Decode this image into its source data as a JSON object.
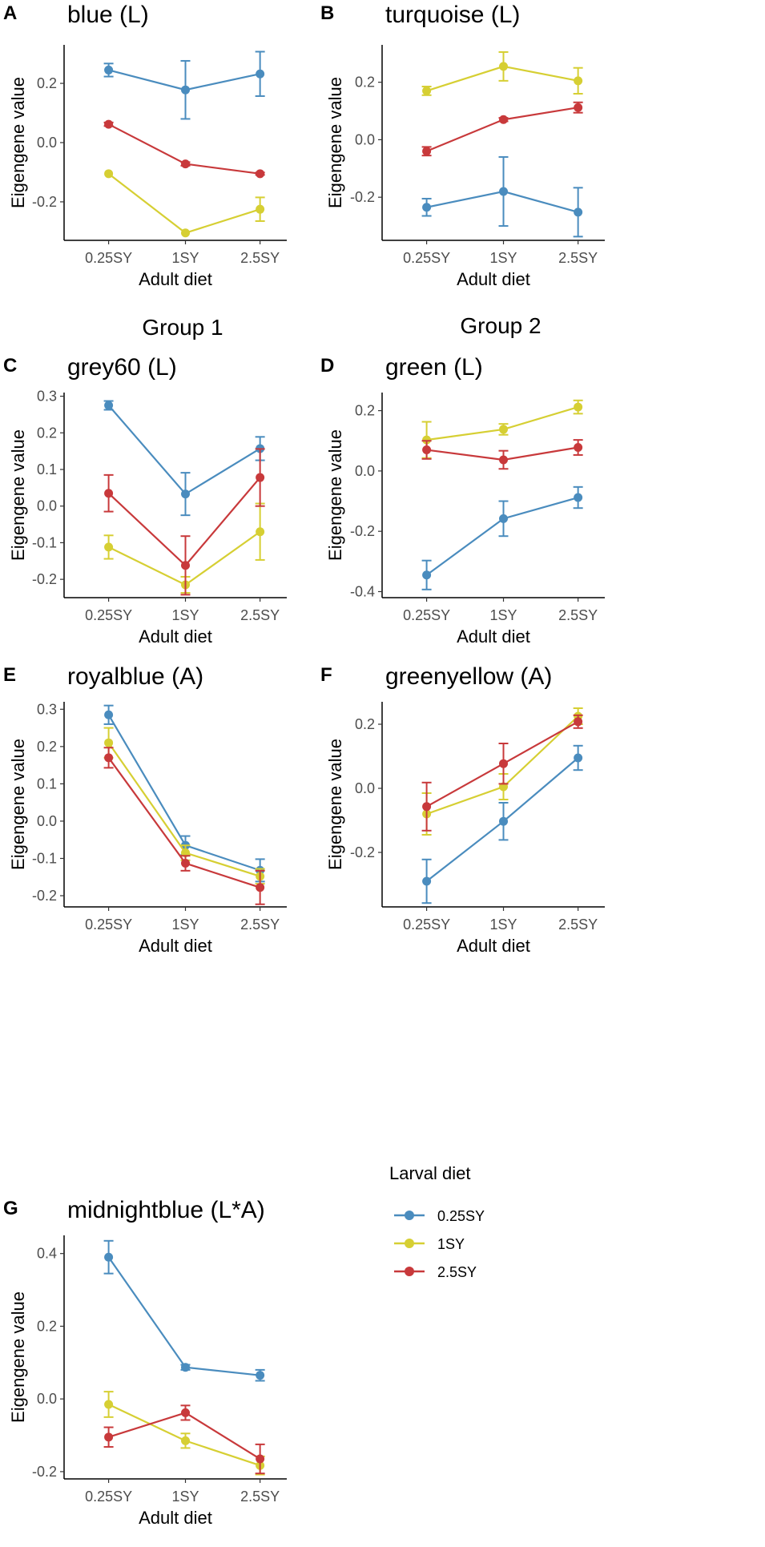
{
  "figure": {
    "group_labels": [
      "Group 1",
      "Group 2"
    ],
    "legend": {
      "title": "Larval diet",
      "items": [
        {
          "label": "0.25SY",
          "color": "#4a8cbe"
        },
        {
          "label": "1SY",
          "color": "#d6cf33"
        },
        {
          "label": "2.5SY",
          "color": "#c8393b"
        }
      ]
    }
  },
  "chart_data": [
    {
      "panel": "A",
      "title": "blue (L)",
      "type": "line",
      "categories": [
        "0.25SY",
        "1SY",
        "2.5SY"
      ],
      "xlabel": "Adult diet",
      "ylabel": "Eigengene value",
      "ylim": [
        -0.33,
        0.33
      ],
      "yticks": [
        0.2,
        0.0,
        -0.2
      ],
      "ytick_labels": [
        "0.2",
        "0.0",
        "-0.2"
      ],
      "series": [
        {
          "name": "0.25SY",
          "color": "#4a8cbe",
          "values": [
            0.245,
            0.178,
            0.232
          ],
          "errors": [
            0.022,
            0.098,
            0.075
          ]
        },
        {
          "name": "1SY",
          "color": "#d6cf33",
          "values": [
            -0.105,
            -0.305,
            -0.225
          ],
          "errors": [
            0.0,
            0.0,
            0.04
          ]
        },
        {
          "name": "2.5SY",
          "color": "#c8393b",
          "values": [
            0.062,
            -0.072,
            -0.105
          ],
          "errors": [
            0.006,
            0.006,
            0.004
          ]
        }
      ]
    },
    {
      "panel": "B",
      "title": "turquoise (L)",
      "type": "line",
      "categories": [
        "0.25SY",
        "1SY",
        "2.5SY"
      ],
      "xlabel": "Adult diet",
      "ylabel": "Eigengene value",
      "ylim": [
        -0.35,
        0.33
      ],
      "yticks": [
        0.2,
        0.0,
        -0.2
      ],
      "ytick_labels": [
        "0.2",
        "0.0",
        "-0.2"
      ],
      "series": [
        {
          "name": "0.25SY",
          "color": "#4a8cbe",
          "values": [
            -0.235,
            -0.18,
            -0.252
          ],
          "errors": [
            0.03,
            0.12,
            0.085
          ]
        },
        {
          "name": "1SY",
          "color": "#d6cf33",
          "values": [
            0.17,
            0.255,
            0.205
          ],
          "errors": [
            0.015,
            0.05,
            0.045
          ]
        },
        {
          "name": "2.5SY",
          "color": "#c8393b",
          "values": [
            -0.04,
            0.07,
            0.112
          ],
          "errors": [
            0.015,
            0.006,
            0.018
          ]
        }
      ]
    },
    {
      "panel": "C",
      "title": "grey60 (L)",
      "type": "line",
      "categories": [
        "0.25SY",
        "1SY",
        "2.5SY"
      ],
      "xlabel": "Adult diet",
      "ylabel": "Eigengene value",
      "ylim": [
        -0.25,
        0.31
      ],
      "yticks": [
        0.3,
        0.2,
        0.1,
        0.0,
        -0.1,
        -0.2
      ],
      "ytick_labels": [
        "0.3",
        "0.2",
        "0.1",
        "0.0",
        "-0.1",
        "-0.2"
      ],
      "series": [
        {
          "name": "0.25SY",
          "color": "#4a8cbe",
          "values": [
            0.275,
            0.033,
            0.157
          ],
          "errors": [
            0.012,
            0.058,
            0.032
          ]
        },
        {
          "name": "1SY",
          "color": "#d6cf33",
          "values": [
            -0.112,
            -0.215,
            -0.07
          ],
          "errors": [
            0.032,
            0.022,
            0.077
          ]
        },
        {
          "name": "2.5SY",
          "color": "#c8393b",
          "values": [
            0.035,
            -0.162,
            0.078
          ],
          "errors": [
            0.05,
            0.08,
            0.078
          ]
        }
      ]
    },
    {
      "panel": "D",
      "title": "green (L)",
      "type": "line",
      "categories": [
        "0.25SY",
        "1SY",
        "2.5SY"
      ],
      "xlabel": "Adult diet",
      "ylabel": "Eigengene value",
      "ylim": [
        -0.42,
        0.26
      ],
      "yticks": [
        0.2,
        0.0,
        -0.2,
        -0.4
      ],
      "ytick_labels": [
        "0.2",
        "0.0",
        "-0.2",
        "-0.4"
      ],
      "series": [
        {
          "name": "0.25SY",
          "color": "#4a8cbe",
          "values": [
            -0.345,
            -0.158,
            -0.088
          ],
          "errors": [
            0.048,
            0.058,
            0.035
          ]
        },
        {
          "name": "1SY",
          "color": "#d6cf33",
          "values": [
            0.103,
            0.138,
            0.212
          ],
          "errors": [
            0.06,
            0.018,
            0.022
          ]
        },
        {
          "name": "2.5SY",
          "color": "#c8393b",
          "values": [
            0.07,
            0.037,
            0.078
          ],
          "errors": [
            0.03,
            0.03,
            0.025
          ]
        }
      ]
    },
    {
      "panel": "E",
      "title": "royalblue (A)",
      "type": "line",
      "categories": [
        "0.25SY",
        "1SY",
        "2.5SY"
      ],
      "xlabel": "Adult diet",
      "ylabel": "Eigengene value",
      "ylim": [
        -0.23,
        0.32
      ],
      "yticks": [
        0.3,
        0.2,
        0.1,
        0.0,
        -0.1,
        -0.2
      ],
      "ytick_labels": [
        "0.3",
        "0.2",
        "0.1",
        "0.0",
        "-0.1",
        "-0.2"
      ],
      "series": [
        {
          "name": "0.25SY",
          "color": "#4a8cbe",
          "values": [
            0.285,
            -0.065,
            -0.132
          ],
          "errors": [
            0.025,
            0.025,
            0.03
          ]
        },
        {
          "name": "1SY",
          "color": "#d6cf33",
          "values": [
            0.21,
            -0.085,
            -0.148
          ],
          "errors": [
            0.04,
            0.02,
            0.02
          ]
        },
        {
          "name": "2.5SY",
          "color": "#c8393b",
          "values": [
            0.17,
            -0.113,
            -0.178
          ],
          "errors": [
            0.027,
            0.02,
            0.045
          ]
        }
      ]
    },
    {
      "panel": "F",
      "title": "greenyellow (A)",
      "type": "line",
      "categories": [
        "0.25SY",
        "1SY",
        "2.5SY"
      ],
      "xlabel": "Adult diet",
      "ylabel": "Eigengene value",
      "ylim": [
        -0.37,
        0.27
      ],
      "yticks": [
        0.2,
        0.0,
        -0.2
      ],
      "ytick_labels": [
        "0.2",
        "0.0",
        "-0.2"
      ],
      "series": [
        {
          "name": "0.25SY",
          "color": "#4a8cbe",
          "values": [
            -0.29,
            -0.103,
            0.095
          ],
          "errors": [
            0.068,
            0.058,
            0.038
          ]
        },
        {
          "name": "1SY",
          "color": "#d6cf33",
          "values": [
            -0.08,
            0.005,
            0.225
          ],
          "errors": [
            0.065,
            0.04,
            0.025
          ]
        },
        {
          "name": "2.5SY",
          "color": "#c8393b",
          "values": [
            -0.057,
            0.077,
            0.208
          ],
          "errors": [
            0.075,
            0.063,
            0.02
          ]
        }
      ]
    },
    {
      "panel": "G",
      "title": "midnightblue (L*A)",
      "type": "line",
      "categories": [
        "0.25SY",
        "1SY",
        "2.5SY"
      ],
      "xlabel": "Adult diet",
      "ylabel": "Eigengene value",
      "ylim": [
        -0.22,
        0.45
      ],
      "yticks": [
        0.4,
        0.2,
        0.0,
        -0.2
      ],
      "ytick_labels": [
        "0.4",
        "0.2",
        "0.0",
        "-0.2"
      ],
      "series": [
        {
          "name": "0.25SY",
          "color": "#4a8cbe",
          "values": [
            0.39,
            0.087,
            0.065
          ],
          "errors": [
            0.045,
            0.007,
            0.015
          ]
        },
        {
          "name": "1SY",
          "color": "#d6cf33",
          "values": [
            -0.015,
            -0.115,
            -0.183
          ],
          "errors": [
            0.035,
            0.02,
            0.025
          ]
        },
        {
          "name": "2.5SY",
          "color": "#c8393b",
          "values": [
            -0.105,
            -0.038,
            -0.165
          ],
          "errors": [
            0.027,
            0.02,
            0.04
          ]
        }
      ]
    }
  ]
}
